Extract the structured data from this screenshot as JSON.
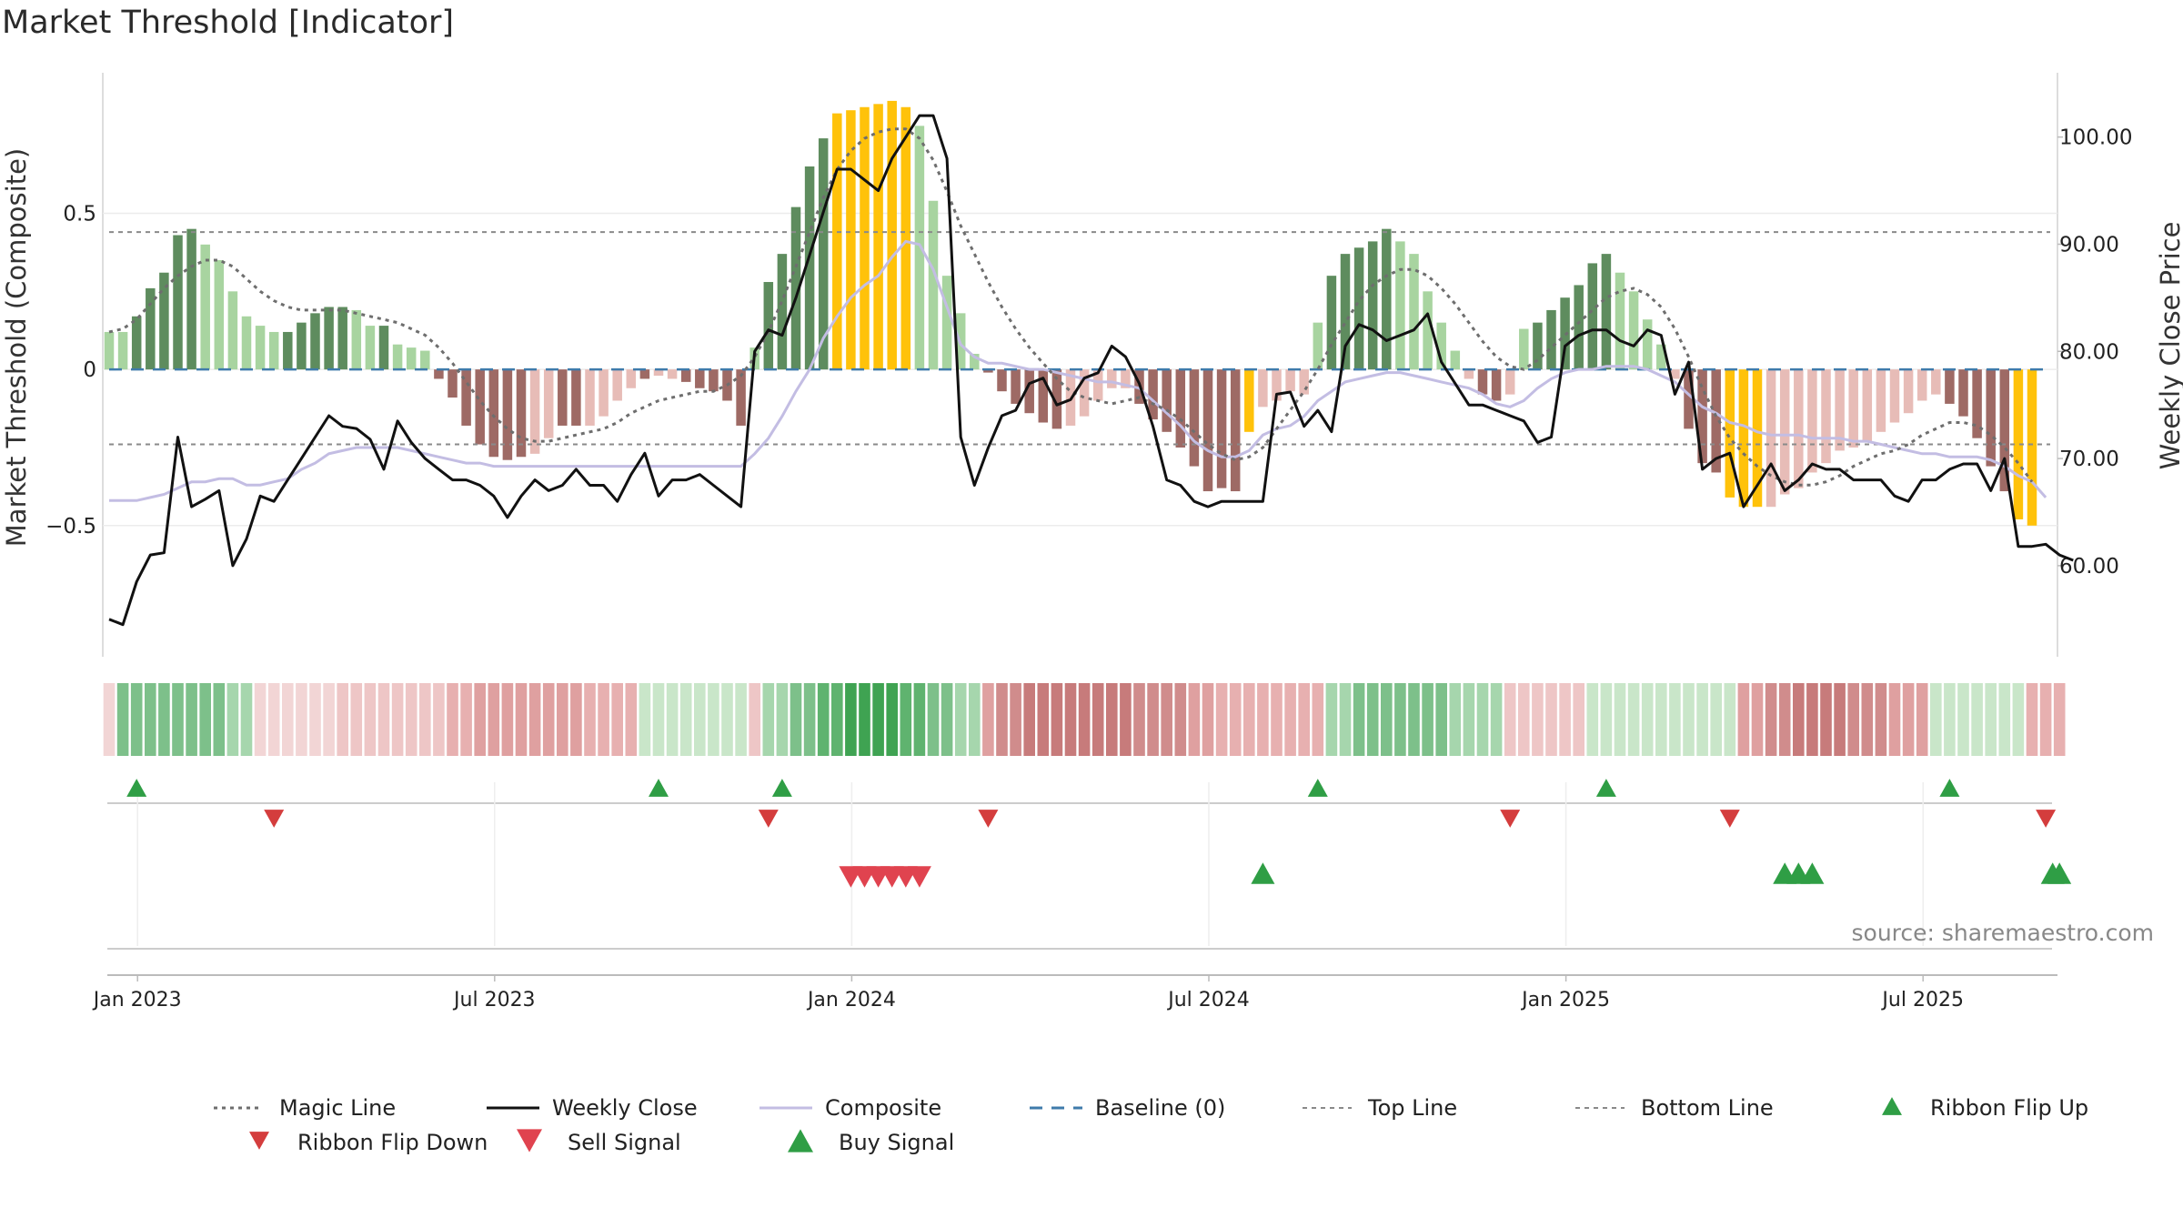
{
  "chart_data": {
    "type": "bar",
    "title": "Market Threshold [Indicator]",
    "ylabel": "Market Threshold (Composite)",
    "y2label": "Weekly Close Price",
    "ylim": [
      -0.92,
      0.95
    ],
    "y2lim": [
      51.5,
      106
    ],
    "yticks": [
      {
        "v": 0.5,
        "label": "0.5"
      },
      {
        "v": 0,
        "label": "0"
      },
      {
        "v": -0.5,
        "label": "−0.5"
      }
    ],
    "y2ticks": [
      {
        "v": 100,
        "label": "100.00"
      },
      {
        "v": 90,
        "label": "90.00"
      },
      {
        "v": 80,
        "label": "80.00"
      },
      {
        "v": 70,
        "label": "70.00"
      },
      {
        "v": 60,
        "label": "60.00"
      }
    ],
    "xticks": [
      {
        "w": 2,
        "label": "Jan 2023"
      },
      {
        "w": 28,
        "label": "Jul 2023"
      },
      {
        "w": 54,
        "label": "Jan 2024"
      },
      {
        "w": 80,
        "label": "Jul 2024"
      },
      {
        "w": 106,
        "label": "Jan 2025"
      },
      {
        "w": 132,
        "label": "Jul 2025"
      }
    ],
    "top_line": 0.44,
    "bottom_line": -0.24,
    "baseline": 0,
    "composite_bars": [
      0.12,
      0.12,
      0.17,
      0.26,
      0.31,
      0.43,
      0.45,
      0.4,
      0.35,
      0.25,
      0.17,
      0.14,
      0.12,
      0.12,
      0.15,
      0.18,
      0.2,
      0.2,
      0.19,
      0.14,
      0.14,
      0.08,
      0.07,
      0.06,
      -0.03,
      -0.09,
      -0.18,
      -0.24,
      -0.28,
      -0.29,
      -0.28,
      -0.27,
      -0.22,
      -0.18,
      -0.18,
      -0.18,
      -0.15,
      -0.1,
      -0.06,
      -0.03,
      -0.02,
      -0.03,
      -0.04,
      -0.06,
      -0.07,
      -0.1,
      -0.18,
      0.07,
      0.28,
      0.37,
      0.52,
      0.65,
      0.74,
      0.82,
      0.83,
      0.84,
      0.85,
      0.86,
      0.84,
      0.78,
      0.54,
      0.3,
      0.18,
      0.05,
      -0.01,
      -0.07,
      -0.11,
      -0.14,
      -0.17,
      -0.19,
      -0.18,
      -0.15,
      -0.1,
      -0.06,
      -0.06,
      -0.11,
      -0.16,
      -0.2,
      -0.25,
      -0.31,
      -0.39,
      -0.38,
      -0.39,
      -0.2,
      -0.12,
      -0.1,
      -0.07,
      -0.08,
      0.15,
      0.3,
      0.37,
      0.39,
      0.41,
      0.45,
      0.41,
      0.37,
      0.25,
      0.15,
      0.06,
      -0.03,
      -0.08,
      -0.1,
      -0.08,
      0.13,
      0.15,
      0.19,
      0.23,
      0.27,
      0.34,
      0.37,
      0.31,
      0.25,
      0.16,
      0.08,
      -0.03,
      -0.19,
      -0.3,
      -0.33,
      -0.41,
      -0.44,
      -0.44,
      -0.44,
      -0.4,
      -0.38,
      -0.33,
      -0.3,
      -0.26,
      -0.25,
      -0.23,
      -0.2,
      -0.17,
      -0.14,
      -0.1,
      -0.08,
      -0.11,
      -0.15,
      -0.22,
      -0.31,
      -0.39,
      -0.48,
      -0.5
    ],
    "bar_colors": [
      "#a8d4a0",
      "#a8d4a0",
      "#5e8c5e",
      "#5e8c5e",
      "#5e8c5e",
      "#5e8c5e",
      "#5e8c5e",
      "#a8d4a0",
      "#a8d4a0",
      "#a8d4a0",
      "#a8d4a0",
      "#a8d4a0",
      "#a8d4a0",
      "#5e8c5e",
      "#5e8c5e",
      "#5e8c5e",
      "#5e8c5e",
      "#5e8c5e",
      "#a8d4a0",
      "#a8d4a0",
      "#5e8c5e",
      "#a8d4a0",
      "#a8d4a0",
      "#a8d4a0",
      "#9e6a65",
      "#9e6a65",
      "#9e6a65",
      "#9e6a65",
      "#9e6a65",
      "#9e6a65",
      "#9e6a65",
      "#e7bcb7",
      "#e7bcb7",
      "#9e6a65",
      "#9e6a65",
      "#e7bcb7",
      "#e7bcb7",
      "#e7bcb7",
      "#e7bcb7",
      "#9e6a65",
      "#e7bcb7",
      "#e7bcb7",
      "#9e6a65",
      "#9e6a65",
      "#9e6a65",
      "#9e6a65",
      "#9e6a65",
      "#a8d4a0",
      "#5e8c5e",
      "#5e8c5e",
      "#5e8c5e",
      "#5e8c5e",
      "#5e8c5e",
      "#ffc20a",
      "#ffc20a",
      "#ffc20a",
      "#ffc20a",
      "#ffc20a",
      "#ffc20a",
      "#a8d4a0",
      "#a8d4a0",
      "#a8d4a0",
      "#a8d4a0",
      "#a8d4a0",
      "#9e6a65",
      "#9e6a65",
      "#9e6a65",
      "#9e6a65",
      "#9e6a65",
      "#9e6a65",
      "#e7bcb7",
      "#e7bcb7",
      "#e7bcb7",
      "#e7bcb7",
      "#e7bcb7",
      "#9e6a65",
      "#9e6a65",
      "#9e6a65",
      "#9e6a65",
      "#9e6a65",
      "#9e6a65",
      "#9e6a65",
      "#9e6a65",
      "#ffc20a",
      "#e7bcb7",
      "#e7bcb7",
      "#e7bcb7",
      "#e7bcb7",
      "#a8d4a0",
      "#5e8c5e",
      "#5e8c5e",
      "#5e8c5e",
      "#5e8c5e",
      "#5e8c5e",
      "#a8d4a0",
      "#a8d4a0",
      "#a8d4a0",
      "#a8d4a0",
      "#a8d4a0",
      "#e7bcb7",
      "#9e6a65",
      "#9e6a65",
      "#e7bcb7",
      "#a8d4a0",
      "#5e8c5e",
      "#5e8c5e",
      "#5e8c5e",
      "#5e8c5e",
      "#5e8c5e",
      "#5e8c5e",
      "#a8d4a0",
      "#a8d4a0",
      "#a8d4a0",
      "#a8d4a0",
      "#e7bcb7",
      "#9e6a65",
      "#9e6a65",
      "#9e6a65",
      "#ffc20a",
      "#ffc20a",
      "#ffc20a",
      "#e7bcb7",
      "#e7bcb7",
      "#e7bcb7",
      "#e7bcb7",
      "#e7bcb7",
      "#e7bcb7",
      "#e7bcb7",
      "#e7bcb7",
      "#e7bcb7",
      "#e7bcb7",
      "#e7bcb7",
      "#e7bcb7",
      "#e7bcb7",
      "#9e6a65",
      "#9e6a65",
      "#9e6a65",
      "#9e6a65",
      "#9e6a65",
      "#ffc20a",
      "#ffc20a"
    ],
    "magic_line": [
      0.12,
      0.13,
      0.16,
      0.21,
      0.26,
      0.3,
      0.33,
      0.35,
      0.35,
      0.33,
      0.29,
      0.25,
      0.22,
      0.2,
      0.19,
      0.19,
      0.19,
      0.19,
      0.18,
      0.17,
      0.16,
      0.15,
      0.13,
      0.11,
      0.07,
      0.02,
      -0.04,
      -0.1,
      -0.15,
      -0.19,
      -0.22,
      -0.23,
      -0.23,
      -0.22,
      -0.21,
      -0.2,
      -0.19,
      -0.17,
      -0.14,
      -0.12,
      -0.1,
      -0.09,
      -0.08,
      -0.07,
      -0.07,
      -0.05,
      -0.02,
      0.04,
      0.12,
      0.22,
      0.33,
      0.44,
      0.55,
      0.64,
      0.7,
      0.74,
      0.76,
      0.77,
      0.77,
      0.74,
      0.67,
      0.57,
      0.46,
      0.37,
      0.28,
      0.2,
      0.13,
      0.07,
      0.02,
      -0.03,
      -0.07,
      -0.09,
      -0.1,
      -0.11,
      -0.1,
      -0.09,
      -0.11,
      -0.13,
      -0.16,
      -0.2,
      -0.24,
      -0.27,
      -0.29,
      -0.28,
      -0.25,
      -0.19,
      -0.13,
      -0.07,
      0.0,
      0.08,
      0.15,
      0.22,
      0.27,
      0.3,
      0.32,
      0.32,
      0.3,
      0.26,
      0.21,
      0.15,
      0.09,
      0.04,
      0.01,
      0.0,
      0.03,
      0.07,
      0.11,
      0.15,
      0.19,
      0.23,
      0.25,
      0.26,
      0.24,
      0.2,
      0.13,
      0.04,
      -0.06,
      -0.15,
      -0.22,
      -0.27,
      -0.31,
      -0.34,
      -0.36,
      -0.37,
      -0.37,
      -0.36,
      -0.34,
      -0.31,
      -0.29,
      -0.27,
      -0.26,
      -0.24,
      -0.21,
      -0.19,
      -0.17,
      -0.17,
      -0.18,
      -0.21,
      -0.25,
      -0.3,
      -0.36
    ],
    "composite_line": [
      -0.42,
      -0.42,
      -0.42,
      -0.41,
      -0.4,
      -0.38,
      -0.36,
      -0.36,
      -0.35,
      -0.35,
      -0.37,
      -0.37,
      -0.36,
      -0.35,
      -0.32,
      -0.3,
      -0.27,
      -0.26,
      -0.25,
      -0.25,
      -0.25,
      -0.25,
      -0.26,
      -0.27,
      -0.28,
      -0.29,
      -0.3,
      -0.3,
      -0.31,
      -0.31,
      -0.31,
      -0.31,
      -0.31,
      -0.31,
      -0.31,
      -0.31,
      -0.31,
      -0.31,
      -0.31,
      -0.31,
      -0.31,
      -0.31,
      -0.31,
      -0.31,
      -0.31,
      -0.31,
      -0.31,
      -0.27,
      -0.22,
      -0.15,
      -0.07,
      0.0,
      0.1,
      0.17,
      0.23,
      0.27,
      0.3,
      0.36,
      0.41,
      0.4,
      0.32,
      0.2,
      0.08,
      0.04,
      0.02,
      0.02,
      0.01,
      0.0,
      0.0,
      -0.01,
      -0.02,
      -0.03,
      -0.04,
      -0.04,
      -0.05,
      -0.06,
      -0.1,
      -0.14,
      -0.18,
      -0.23,
      -0.26,
      -0.28,
      -0.28,
      -0.26,
      -0.21,
      -0.19,
      -0.18,
      -0.15,
      -0.1,
      -0.07,
      -0.04,
      -0.03,
      -0.02,
      -0.01,
      -0.01,
      -0.02,
      -0.03,
      -0.04,
      -0.05,
      -0.06,
      -0.08,
      -0.11,
      -0.12,
      -0.1,
      -0.06,
      -0.03,
      -0.01,
      0.0,
      0.0,
      0.01,
      0.01,
      0.01,
      0.0,
      -0.02,
      -0.04,
      -0.08,
      -0.12,
      -0.14,
      -0.17,
      -0.18,
      -0.2,
      -0.21,
      -0.21,
      -0.21,
      -0.22,
      -0.22,
      -0.22,
      -0.23,
      -0.23,
      -0.24,
      -0.25,
      -0.26,
      -0.27,
      -0.27,
      -0.28,
      -0.28,
      -0.28,
      -0.29,
      -0.31,
      -0.34,
      -0.36,
      -0.41
    ],
    "weekly_close": [
      55.0,
      54.5,
      58.5,
      61.0,
      61.2,
      72.0,
      65.5,
      66.2,
      67.0,
      60.0,
      62.5,
      66.5,
      66.0,
      68.0,
      70.0,
      72.0,
      74.0,
      73.0,
      72.8,
      71.8,
      69.0,
      73.5,
      71.5,
      70.0,
      69.0,
      68.0,
      68.0,
      67.5,
      66.5,
      64.5,
      66.5,
      68.0,
      67.0,
      67.5,
      69.0,
      67.5,
      67.5,
      66.0,
      68.5,
      70.5,
      66.5,
      68.0,
      68.0,
      68.5,
      67.5,
      66.5,
      65.5,
      80.0,
      82.0,
      81.5,
      85.0,
      89.0,
      93.0,
      97.0,
      97.0,
      96.0,
      95.0,
      98.0,
      100.0,
      102.0,
      102.0,
      98.0,
      72.0,
      67.5,
      71.0,
      74.0,
      74.5,
      77.0,
      77.5,
      75.0,
      75.5,
      77.5,
      78.0,
      80.5,
      79.5,
      77.0,
      73.0,
      68.0,
      67.5,
      66.0,
      65.5,
      66.0,
      66.0,
      66.0,
      66.0,
      76.0,
      76.2,
      73.0,
      74.5,
      72.5,
      80.5,
      82.5,
      82.0,
      81.0,
      81.5,
      82.0,
      83.5,
      79.0,
      77.0,
      75.0,
      75.0,
      74.5,
      74.0,
      73.5,
      71.5,
      72.0,
      80.5,
      81.5,
      82.0,
      82.0,
      81.0,
      80.5,
      82.0,
      81.5,
      76.0,
      79.0,
      69.0,
      70.0,
      70.5,
      65.5,
      67.5,
      69.5,
      67.0,
      68.0,
      69.5,
      69.0,
      69.0,
      68.0,
      68.0,
      68.0,
      66.5,
      66.0,
      68.0,
      68.0,
      69.0,
      69.5,
      69.5,
      67.0,
      70.0,
      61.8,
      61.8,
      62.0,
      61.0,
      60.5
    ],
    "ribbon_colors": [
      "#f2d5d5",
      "#7dc08a",
      "#7dc08a",
      "#7dc08a",
      "#7dc08a",
      "#7dc08a",
      "#7dc08a",
      "#7dc08a",
      "#7dc08a",
      "#a6d6ad",
      "#a6d6ad",
      "#f2d5d5",
      "#f2d5d5",
      "#f2d5d5",
      "#f2d5d5",
      "#f2d5d5",
      "#f2d5d5",
      "#eec6c6",
      "#eec6c6",
      "#eec6c6",
      "#eec6c6",
      "#eec6c6",
      "#eec6c6",
      "#eec6c6",
      "#eec6c6",
      "#e7b0b0",
      "#e7b0b0",
      "#dfa0a0",
      "#dfa0a0",
      "#dfa0a0",
      "#dfa0a0",
      "#dfa0a0",
      "#dfa0a0",
      "#dfa0a0",
      "#dfa0a0",
      "#e7b0b0",
      "#e7b0b0",
      "#e7b0b0",
      "#e7b0b0",
      "#c9e6c9",
      "#c9e6c9",
      "#c9e6c9",
      "#c9e6c9",
      "#c9e6c9",
      "#c9e6c9",
      "#c9e6c9",
      "#c9e6c9",
      "#eec6c6",
      "#a6d6ad",
      "#a6d6ad",
      "#7dc08a",
      "#7dc08a",
      "#5fb36f",
      "#5fb36f",
      "#3fa352",
      "#3fa352",
      "#3fa352",
      "#3fa352",
      "#5fb36f",
      "#5fb36f",
      "#7dc08a",
      "#7dc08a",
      "#a6d6ad",
      "#a6d6ad",
      "#dfa0a0",
      "#d08c8c",
      "#d08c8c",
      "#c77b7b",
      "#c77b7b",
      "#c77b7b",
      "#c77b7b",
      "#c77b7b",
      "#c77b7b",
      "#c77b7b",
      "#c77b7b",
      "#d08c8c",
      "#d08c8c",
      "#d08c8c",
      "#d08c8c",
      "#dfa0a0",
      "#dfa0a0",
      "#e7b0b0",
      "#e7b0b0",
      "#e7b0b0",
      "#e7b0b0",
      "#e7b0b0",
      "#e7b0b0",
      "#e7b0b0",
      "#e7b0b0",
      "#a6d6ad",
      "#a6d6ad",
      "#7dc08a",
      "#7dc08a",
      "#7dc08a",
      "#7dc08a",
      "#7dc08a",
      "#7dc08a",
      "#7dc08a",
      "#a6d6ad",
      "#a6d6ad",
      "#a6d6ad",
      "#a6d6ad",
      "#eec6c6",
      "#eec6c6",
      "#eec6c6",
      "#eec6c6",
      "#eec6c6",
      "#eec6c6",
      "#c9e6c9",
      "#c9e6c9",
      "#c9e6c9",
      "#c9e6c9",
      "#c9e6c9",
      "#c9e6c9",
      "#c9e6c9",
      "#c9e6c9",
      "#c9e6c9",
      "#c9e6c9",
      "#c9e6c9",
      "#dfa0a0",
      "#dfa0a0",
      "#d08c8c",
      "#d08c8c",
      "#c77b7b",
      "#c77b7b",
      "#c77b7b",
      "#c77b7b",
      "#d08c8c",
      "#d08c8c",
      "#d08c8c",
      "#dfa0a0",
      "#dfa0a0",
      "#dfa0a0",
      "#c9e6c9",
      "#c9e6c9",
      "#c9e6c9",
      "#c9e6c9",
      "#c9e6c9",
      "#c9e6c9",
      "#c9e6c9",
      "#e7b0b0",
      "#e7b0b0",
      "#e7b0b0"
    ],
    "ribbon_flip_up_weeks": [
      2,
      40,
      49,
      88,
      109,
      134
    ],
    "ribbon_flip_down_weeks": [
      12,
      48,
      64,
      102,
      118,
      141
    ],
    "sell_signal_weeks": [
      54,
      55,
      56,
      57,
      58,
      59
    ],
    "buy_signal_weeks": [
      84,
      122,
      123,
      124,
      141.5,
      142
    ],
    "legend": [
      {
        "key": "magic",
        "label": "Magic Line"
      },
      {
        "key": "close",
        "label": "Weekly Close"
      },
      {
        "key": "composite",
        "label": "Composite"
      },
      {
        "key": "baseline",
        "label": "Baseline (0)"
      },
      {
        "key": "top",
        "label": "Top Line"
      },
      {
        "key": "bottom",
        "label": "Bottom Line"
      },
      {
        "key": "flipup",
        "label": "Ribbon Flip Up"
      },
      {
        "key": "flipdown",
        "label": "Ribbon Flip Down"
      },
      {
        "key": "sell",
        "label": "Sell Signal"
      },
      {
        "key": "buy",
        "label": "Buy Signal"
      }
    ],
    "colors": {
      "close": "#111111",
      "magic": "#6e6e6e",
      "composite": "#c3bde3",
      "baseline": "#3f7bab",
      "guide": "#8a8a8a",
      "flipup": "#2f9e45",
      "flipdown": "#d43d3d",
      "sell": "#e0434f",
      "buy": "#2f9e45"
    }
  },
  "source": "source: sharemaestro.com"
}
